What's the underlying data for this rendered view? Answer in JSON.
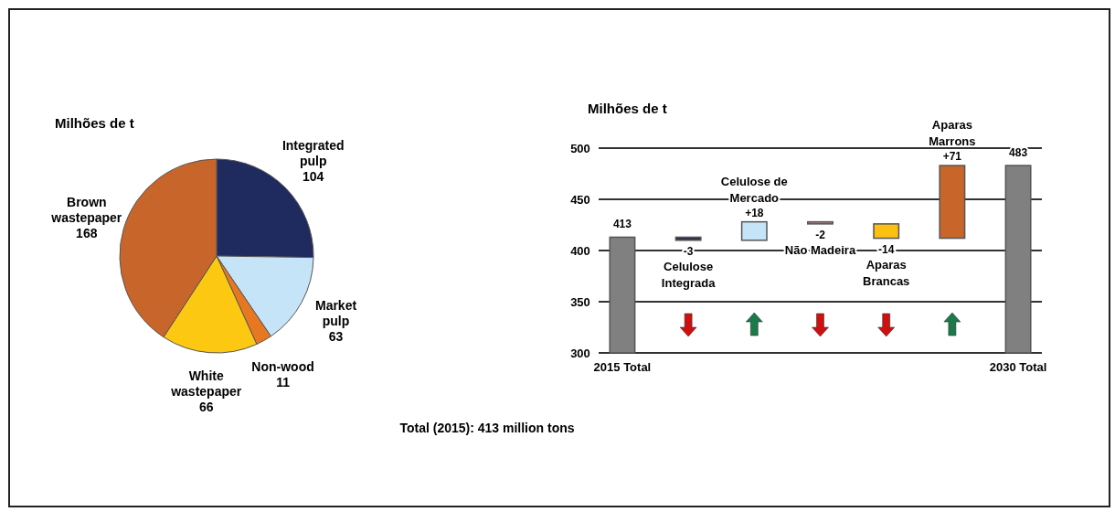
{
  "chart_data": [
    {
      "type": "pie",
      "title": "Milhões de t",
      "categories": [
        "Integrated pulp",
        "Market pulp",
        "Non-wood",
        "White wastepaper",
        "Brown wastepaper"
      ],
      "values": [
        104,
        63,
        11,
        66,
        168
      ],
      "colors": [
        "#1f2a5e",
        "#c5e4f7",
        "#e87722",
        "#fcc812",
        "#c8652a"
      ],
      "data_labels": true,
      "annotations": [
        "Total (2015): 413 million tons"
      ]
    },
    {
      "type": "bar",
      "title": "Milhões de t",
      "categories": [
        "2015 Total",
        "Celulose Integrada",
        "Celulose de Mercado",
        "Não Madeira",
        "Aparas Brancas",
        "Aparas Marrons",
        "2030 Total"
      ],
      "values": [
        413,
        -3,
        18,
        -2,
        -14,
        71,
        483
      ],
      "base": [
        null,
        413,
        410,
        428,
        426,
        412,
        null
      ],
      "colors": [
        "#808080",
        "#2e2e48",
        "#c5e4f7",
        "#b08c88",
        "#fcc012",
        "#c8652a",
        "#808080"
      ],
      "value_labels": [
        "413",
        "-3",
        "+18",
        "-2",
        "-14",
        "+71",
        "483"
      ],
      "ylim": [
        300,
        500
      ],
      "yticks": [
        300,
        350,
        400,
        450,
        500
      ],
      "grid": "y"
    }
  ]
}
